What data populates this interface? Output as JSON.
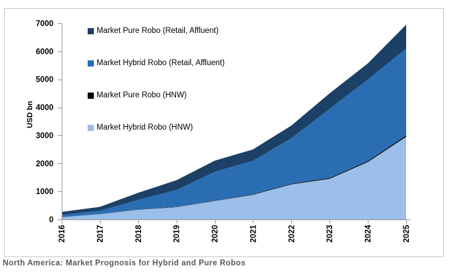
{
  "page": {
    "caption": "North America: Market Prognosis for Hybrid and Pure Robos",
    "background_color": "#ffffff",
    "frame_border_color": "#c8c8c8"
  },
  "chart_data": {
    "type": "area",
    "stacked": true,
    "title": "",
    "xlabel": "",
    "ylabel": "USD bn",
    "categories": [
      "2016",
      "2017",
      "2018",
      "2019",
      "2020",
      "2021",
      "2022",
      "2023",
      "2024",
      "2025"
    ],
    "ylim": [
      0,
      7000
    ],
    "yticks": [
      0,
      1000,
      2000,
      3000,
      4000,
      5000,
      6000,
      7000
    ],
    "grid": false,
    "legend_position": "upper-left-inside",
    "axis_color": "#9b9b9b",
    "tick_label_color": "#000000",
    "series": [
      {
        "label": "Market Hybrid Robo (HNW)",
        "color": "#9bbfe8",
        "values": [
          80,
          190,
          350,
          440,
          660,
          880,
          1250,
          1450,
          2050,
          2950
        ]
      },
      {
        "label": "Market Pure Robo (HNW)",
        "color": "#000000",
        "values": [
          3,
          5,
          8,
          10,
          14,
          18,
          22,
          28,
          35,
          45
        ]
      },
      {
        "label": "Market Hybrid Robo (Retail, Affluent)",
        "color": "#2a6db3",
        "values": [
          77,
          115,
          342,
          600,
          1026,
          1202,
          1628,
          2472,
          2915,
          3105
        ]
      },
      {
        "label": "Market Pure Robo (Retail, Affluent)",
        "color": "#1c4066",
        "values": [
          110,
          140,
          250,
          350,
          400,
          400,
          450,
          550,
          570,
          850
        ]
      }
    ]
  }
}
